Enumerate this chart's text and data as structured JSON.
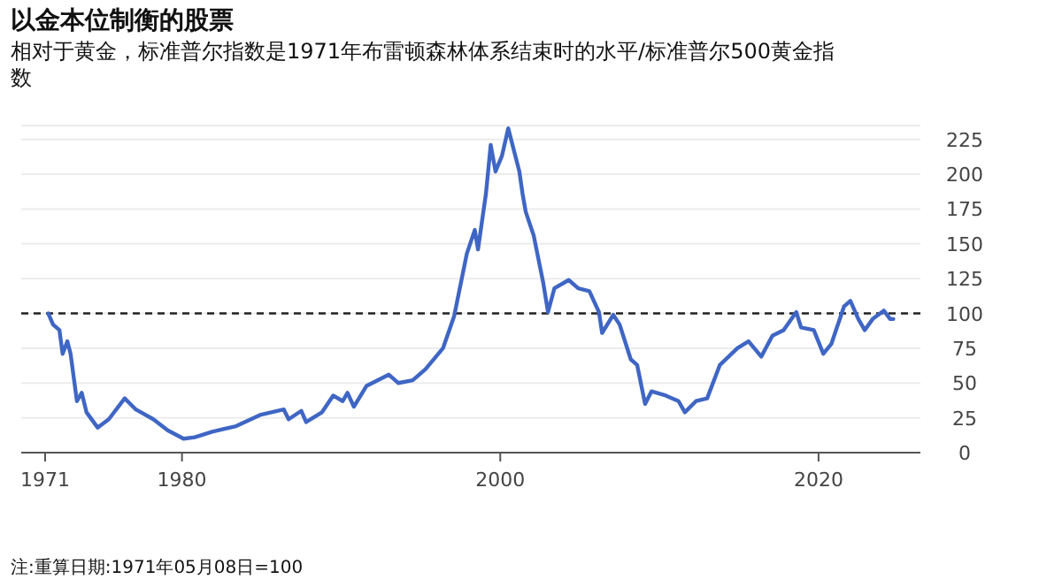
{
  "chart_data": {
    "type": "line",
    "title": "以金本位制衡的股票",
    "subtitle": "相对于黄金，标准普尔指数是1971年布雷顿森林体系结束时的水平/标准普尔500黄金指数",
    "annotations": [
      "注:重算日期:1971年05月08日=100"
    ],
    "x": [
      1971.6,
      1971.9,
      1972.3,
      1972.5,
      1972.8,
      1973.0,
      1973.4,
      1973.7,
      1974.0,
      1974.7,
      1975.4,
      1976.4,
      1977.1,
      1978.2,
      1979.1,
      1980.1,
      1980.8,
      1981.9,
      1983.4,
      1984.9,
      1986.4,
      1986.7,
      1987.5,
      1987.8,
      1988.8,
      1989.5,
      1990.1,
      1990.4,
      1990.8,
      1991.6,
      1993.0,
      1993.6,
      1994.5,
      1995.3,
      1996.4,
      1997.1,
      1997.9,
      1998.4,
      1998.6,
      1999.1,
      1999.4,
      1999.7,
      2000.1,
      2000.5,
      2001.2,
      2001.4,
      2001.6,
      2002.1,
      2002.7,
      2003.0,
      2003.4,
      2004.3,
      2004.9,
      2005.6,
      2006.2,
      2006.4,
      2007.1,
      2007.5,
      2008.2,
      2008.6,
      2009.1,
      2009.5,
      2010.4,
      2011.2,
      2011.6,
      2012.3,
      2013.0,
      2013.8,
      2014.9,
      2015.6,
      2016.4,
      2017.1,
      2017.8,
      2018.6,
      2018.9,
      2019.7,
      2020.3,
      2020.8,
      2021.6,
      2022.0,
      2022.5,
      2022.9,
      2023.4,
      2024.1,
      2024.5,
      2024.7
    ],
    "series": [
      {
        "color": "#3f66c4",
        "values": [
          100,
          92,
          88,
          71,
          80,
          71,
          37,
          43,
          29,
          18,
          24,
          39,
          31,
          24,
          16,
          10,
          11,
          15,
          19,
          27,
          31,
          24,
          30,
          22,
          29,
          41,
          37,
          43,
          33,
          48,
          56,
          50,
          52,
          60,
          75,
          98,
          143,
          160,
          146,
          186,
          221,
          202,
          213,
          233,
          202,
          186,
          173,
          156,
          122,
          101,
          118,
          124,
          118,
          116,
          101,
          86,
          99,
          92,
          67,
          63,
          35,
          44,
          41,
          37,
          29,
          37,
          39,
          63,
          75,
          80,
          69,
          84,
          88,
          101,
          90,
          88,
          71,
          78,
          105,
          109,
          96,
          88,
          96,
          102,
          96,
          96
        ]
      }
    ],
    "xlim": [
      1969.9,
      2026.4
    ],
    "ylim": [
      0,
      235
    ],
    "xticks": [
      {
        "value": 1971.4,
        "label": "1971"
      },
      1980,
      2000,
      2020
    ],
    "yticks": [
      0,
      25,
      50,
      75,
      100,
      125,
      150,
      175,
      200,
      225
    ],
    "grid": "y",
    "marker": "none",
    "line_style": "solid",
    "ref_lines": [
      {
        "axis": "y",
        "value": 100,
        "color": "#222222",
        "line_style": "dashed"
      }
    ]
  }
}
